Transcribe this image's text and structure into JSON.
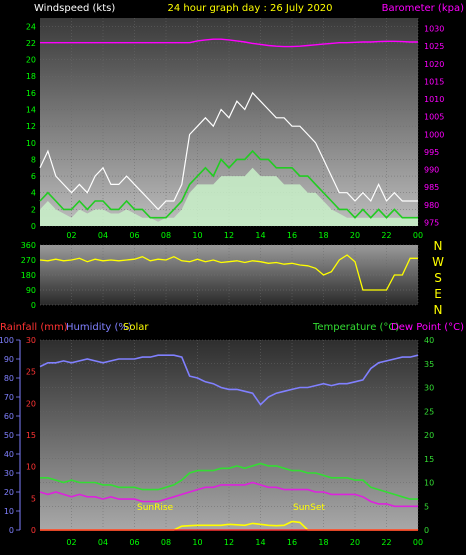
{
  "header": {
    "left_title": "Windspeed (kts)",
    "center_title": "24 hour graph day : 26 July 2020",
    "right_title": "Barometer (kpa)"
  },
  "colors": {
    "windspeed_title": "#ffffff",
    "center_title": "#ffff00",
    "barometer": "#ff00ff",
    "gust": "#ffffff",
    "speed": "#22cc22",
    "avg_fill": "#c8f0c8",
    "direction": "#ffff00",
    "rainfall": "#ff3333",
    "humidity": "#8080ff",
    "solar": "#ffff00",
    "temperature": "#33dd33",
    "dewpoint": "#dd22dd",
    "tick_text": "#00ff00",
    "compass": "#ffff00"
  },
  "xaxis": {
    "labels": [
      "02",
      "04",
      "06",
      "08",
      "10",
      "12",
      "14",
      "16",
      "18",
      "20",
      "22",
      "00"
    ]
  },
  "compass": [
    "N",
    "W",
    "S",
    "E",
    "N"
  ],
  "bottom_titles": {
    "rainfall": "Rainfall (mm)",
    "humidity": "Humidity (%)",
    "solar": "Solar",
    "temperature": "Temperature (°C)",
    "dewpoint": "Dew Point (°C)",
    "sunrise": "SunRise",
    "sunset": "SunSet"
  },
  "chart_data": [
    {
      "type": "line",
      "name": "wind",
      "title": "Windspeed (kts)",
      "right_axis_title": "Barometer (kpa)",
      "xlim": [
        0,
        24
      ],
      "ylim": [
        0,
        25
      ],
      "yticks": [
        0,
        2,
        4,
        6,
        8,
        10,
        12,
        14,
        16,
        18,
        20,
        22,
        24
      ],
      "y2lim": [
        974,
        1033
      ],
      "y2ticks": [
        975,
        980,
        985,
        990,
        995,
        1000,
        1005,
        1010,
        1015,
        1020,
        1025,
        1030
      ],
      "x": [
        0,
        0.5,
        1,
        1.5,
        2,
        2.5,
        3,
        3.5,
        4,
        4.5,
        5,
        5.5,
        6,
        6.5,
        7,
        7.5,
        8,
        8.5,
        9,
        9.5,
        10,
        10.5,
        11,
        11.5,
        12,
        12.5,
        13,
        13.5,
        14,
        14.5,
        15,
        15.5,
        16,
        16.5,
        17,
        17.5,
        18,
        18.5,
        19,
        19.5,
        20,
        20.5,
        21,
        21.5,
        22,
        22.5,
        23,
        23.5,
        24
      ],
      "series": [
        {
          "key": "gust",
          "values": [
            7,
            9,
            6,
            5,
            4,
            5,
            4,
            6,
            7,
            5,
            5,
            6,
            5,
            4,
            3,
            2,
            3,
            3,
            5,
            11,
            12,
            13,
            12,
            14,
            13,
            15,
            14,
            16,
            15,
            14,
            13,
            13,
            12,
            12,
            11,
            10,
            8,
            6,
            4,
            4,
            3,
            4,
            3,
            5,
            3,
            4,
            3,
            3,
            3
          ]
        },
        {
          "key": "speed",
          "values": [
            3,
            4,
            3,
            2,
            2,
            3,
            2,
            3,
            3,
            2,
            2,
            3,
            2,
            2,
            1,
            1,
            1,
            2,
            3,
            5,
            6,
            7,
            6,
            8,
            7,
            8,
            8,
            9,
            8,
            8,
            7,
            7,
            7,
            6,
            6,
            5,
            4,
            3,
            2,
            2,
            1,
            2,
            1,
            2,
            1,
            2,
            1,
            1,
            1
          ]
        },
        {
          "key": "avg",
          "values": [
            2,
            3,
            2,
            1.5,
            1,
            2,
            1.5,
            2,
            2,
            1.5,
            1.5,
            2,
            1.5,
            1,
            1,
            0.5,
            1,
            1,
            2,
            4,
            5,
            5,
            5,
            6,
            6,
            6,
            6,
            7,
            6,
            6,
            6,
            5,
            5,
            5,
            4,
            4,
            3,
            2,
            1.5,
            1,
            1,
            1,
            1,
            1,
            1,
            1,
            1,
            1,
            1
          ]
        },
        {
          "key": "barometer",
          "values": [
            1026,
            1026,
            1026,
            1026,
            1026,
            1026,
            1026,
            1026,
            1026,
            1026,
            1026,
            1026,
            1026,
            1026,
            1026,
            1026,
            1026,
            1026,
            1026,
            1026,
            1026.5,
            1026.8,
            1027,
            1027,
            1026.8,
            1026.5,
            1026.2,
            1025.8,
            1025.5,
            1025.2,
            1025,
            1024.9,
            1024.9,
            1025,
            1025.2,
            1025.4,
            1025.6,
            1025.8,
            1026,
            1026,
            1026.1,
            1026.2,
            1026.2,
            1026.3,
            1026.4,
            1026.4,
            1026.3,
            1026.2,
            1026.2
          ]
        }
      ]
    },
    {
      "type": "line",
      "name": "direction",
      "xlim": [
        0,
        24
      ],
      "ylim": [
        0,
        360
      ],
      "yticks": [
        0,
        90,
        180,
        270,
        360
      ],
      "x": [
        0,
        0.5,
        1,
        1.5,
        2,
        2.5,
        3,
        3.5,
        4,
        4.5,
        5,
        5.5,
        6,
        6.5,
        7,
        7.5,
        8,
        8.5,
        9,
        9.5,
        10,
        10.5,
        11,
        11.5,
        12,
        12.5,
        13,
        13.5,
        14,
        14.5,
        15,
        15.5,
        16,
        16.5,
        17,
        17.5,
        18,
        18.5,
        19,
        19.5,
        20,
        20.5,
        21,
        21.5,
        22,
        22.5,
        23,
        23.5,
        24
      ],
      "series": [
        {
          "key": "direction",
          "values": [
            270,
            265,
            275,
            265,
            270,
            280,
            260,
            275,
            265,
            270,
            265,
            270,
            275,
            290,
            265,
            275,
            270,
            290,
            265,
            260,
            275,
            260,
            270,
            255,
            260,
            265,
            255,
            265,
            260,
            250,
            255,
            245,
            250,
            240,
            235,
            220,
            180,
            200,
            270,
            300,
            260,
            90,
            90,
            90,
            90,
            180,
            180,
            280,
            280
          ]
        }
      ]
    },
    {
      "type": "line",
      "name": "atmosphere",
      "xlim": [
        0,
        24
      ],
      "left_axis_title": "Humidity (%)",
      "ylim": [
        0,
        100
      ],
      "yticks": [
        0,
        10,
        20,
        30,
        40,
        50,
        60,
        70,
        80,
        90,
        100
      ],
      "rain_axis_title": "Rainfall (mm)",
      "rain_lim": [
        0,
        30
      ],
      "rain_ticks": [
        0,
        5,
        10,
        15,
        20,
        25,
        30
      ],
      "right_axis_title": "Temperature (°C)",
      "y2lim": [
        0,
        40
      ],
      "y2ticks": [
        0,
        5,
        10,
        15,
        20,
        25,
        30,
        35,
        40
      ],
      "x": [
        0,
        0.5,
        1,
        1.5,
        2,
        2.5,
        3,
        3.5,
        4,
        4.5,
        5,
        5.5,
        6,
        6.5,
        7,
        7.5,
        8,
        8.5,
        9,
        9.5,
        10,
        10.5,
        11,
        11.5,
        12,
        12.5,
        13,
        13.5,
        14,
        14.5,
        15,
        15.5,
        16,
        16.5,
        17,
        17.5,
        18,
        18.5,
        19,
        19.5,
        20,
        20.5,
        21,
        21.5,
        22,
        22.5,
        23,
        23.5,
        24
      ],
      "series": [
        {
          "key": "humidity",
          "values": [
            86,
            88,
            88,
            89,
            88,
            89,
            90,
            89,
            88,
            89,
            90,
            90,
            90,
            91,
            91,
            92,
            92,
            92,
            91,
            81,
            80,
            78,
            77,
            75,
            74,
            74,
            73,
            72,
            66,
            70,
            72,
            73,
            74,
            75,
            75,
            76,
            77,
            76,
            77,
            77,
            78,
            79,
            85,
            88,
            89,
            90,
            91,
            91,
            92
          ]
        },
        {
          "key": "rainfall",
          "values": [
            0,
            0,
            0,
            0,
            0,
            0,
            0,
            0,
            0,
            0,
            0,
            0,
            0,
            0,
            0,
            0,
            0,
            0,
            0,
            0,
            0,
            0,
            0,
            0,
            0,
            0,
            0,
            0,
            0,
            0,
            0,
            0,
            0,
            0,
            0,
            0,
            0,
            0,
            0,
            0,
            0,
            0,
            0,
            0,
            0,
            0,
            0,
            0,
            0
          ]
        },
        {
          "key": "temperature",
          "values": [
            11,
            11,
            10.5,
            10,
            10.5,
            10,
            10,
            10,
            9.5,
            9.5,
            9,
            9,
            9,
            8.5,
            8.5,
            8.5,
            9,
            9.5,
            10.5,
            12,
            12.5,
            12.5,
            12.5,
            13,
            13,
            13.5,
            13,
            13.5,
            14,
            13.5,
            13.5,
            13,
            12.5,
            12.5,
            12,
            12,
            11.5,
            11,
            11,
            11,
            10.5,
            10.5,
            9,
            8.5,
            8,
            7.5,
            7,
            6.5,
            6.5
          ]
        },
        {
          "key": "dewpoint",
          "values": [
            8,
            7.5,
            8,
            7.5,
            7,
            7.5,
            7,
            7,
            6.5,
            7,
            6.5,
            6.5,
            6.5,
            6,
            6,
            6,
            6.5,
            7,
            7.5,
            8,
            8.5,
            9,
            9,
            9.5,
            9.5,
            9.5,
            9.5,
            10,
            9.5,
            9,
            9,
            8.5,
            8.5,
            8.5,
            8.5,
            8,
            8,
            7.5,
            7.5,
            7.5,
            7.5,
            7,
            6,
            5.5,
            5.5,
            5,
            5,
            5,
            5
          ]
        },
        {
          "key": "solar",
          "values": [
            0,
            0,
            0,
            0,
            0,
            0,
            0,
            0,
            0,
            0,
            0,
            0,
            0,
            0,
            0,
            0,
            0,
            0,
            0.8,
            0.9,
            1,
            1,
            1,
            1,
            1.2,
            1.1,
            1,
            1.4,
            1.2,
            1,
            0.9,
            1,
            1.8,
            1.6,
            0,
            0,
            0,
            0,
            0,
            0,
            0,
            0,
            0,
            0,
            0,
            0,
            0,
            0,
            0
          ]
        }
      ]
    }
  ]
}
